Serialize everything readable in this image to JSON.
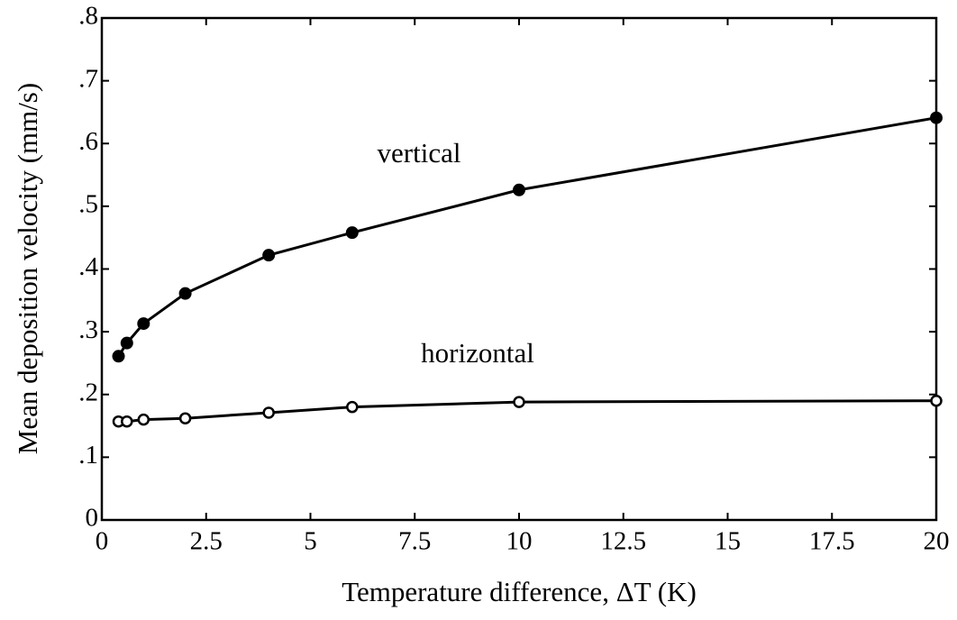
{
  "chart_data": {
    "type": "line",
    "xlabel": "Temperature difference, ΔT (K)",
    "ylabel": "Mean deposition velocity (mm/s)",
    "xlim": [
      0,
      20
    ],
    "ylim": [
      0,
      0.8
    ],
    "xticks": [
      0,
      2.5,
      5,
      7.5,
      10,
      12.5,
      15,
      17.5,
      20
    ],
    "yticks": [
      0,
      {
        "value": 0.1,
        "label": ".1"
      },
      {
        "value": 0.2,
        "label": ".2"
      },
      {
        "value": 0.3,
        "label": ".3"
      },
      {
        "value": 0.4,
        "label": ".4"
      },
      {
        "value": 0.5,
        "label": ".5"
      },
      {
        "value": 0.6,
        "label": ".6"
      },
      {
        "value": 0.7,
        "label": ".7"
      },
      {
        "value": 0.8,
        "label": ".8"
      }
    ],
    "grid": false,
    "series": [
      {
        "name": "vertical",
        "color": "#000000",
        "marker": "filled",
        "x": [
          0.4,
          0.6,
          1,
          2,
          4,
          6,
          10,
          20
        ],
        "values": [
          0.261,
          0.282,
          0.313,
          0.361,
          0.422,
          0.458,
          0.526,
          0.641
        ]
      },
      {
        "name": "horizontal",
        "color": "#000000",
        "marker": "open",
        "x": [
          0.4,
          0.6,
          1,
          2,
          4,
          6,
          10,
          20
        ],
        "values": [
          0.157,
          0.157,
          0.16,
          0.162,
          0.171,
          0.18,
          0.188,
          0.19
        ]
      }
    ]
  }
}
